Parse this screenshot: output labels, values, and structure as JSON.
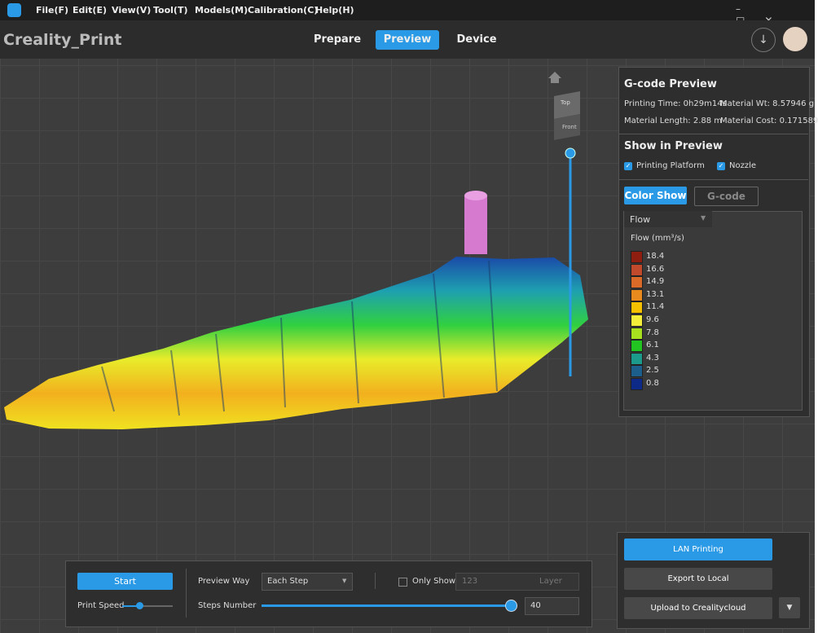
{
  "menu": [
    "File(F)",
    "Edit(E)",
    "View(V)",
    "Tool(T)",
    "Models(M)",
    "Calibration(C)",
    "Help(H)"
  ],
  "app_title": "Creality_Print",
  "tabs": [
    "Prepare",
    "Preview",
    "Device"
  ],
  "view_cube": {
    "top": "Top",
    "front": "Front"
  },
  "gcode_preview": {
    "title": "G-code Preview",
    "stats": [
      "Printing Time: 0h29m14s",
      "Material Wt: 8.57946 g",
      "Material Length: 2.88 m",
      "Material Cost: 0.171589"
    ]
  },
  "show_in_preview": {
    "title": "Show in Preview",
    "options": [
      "Printing Platform",
      "Nozzle"
    ]
  },
  "color_tabs": [
    "Color Show",
    "G-code"
  ],
  "dropdown": "Flow",
  "legend": {
    "title": "Flow (mm³/s)",
    "items": [
      {
        "value": 18.4,
        "color": "#8e1e10"
      },
      {
        "value": 16.6,
        "color": "#c24a2c"
      },
      {
        "value": 14.9,
        "color": "#d96a28"
      },
      {
        "value": 13.1,
        "color": "#e98a1e"
      },
      {
        "value": 11.4,
        "color": "#f4c000"
      },
      {
        "value": 9.6,
        "color": "#f2ee3a"
      },
      {
        "value": 7.8,
        "color": "#a8e020"
      },
      {
        "value": 6.1,
        "color": "#22c422"
      },
      {
        "value": 4.3,
        "color": "#1c9a8c"
      },
      {
        "value": 2.5,
        "color": "#1d5f8c"
      },
      {
        "value": 0.8,
        "color": "#0d2a88"
      }
    ]
  },
  "bottom_panel": {
    "start": "Start",
    "print_speed": "Print Speed",
    "preview_way": "Preview Way",
    "preview_way_value": "Each Step",
    "only_show": "Only Show",
    "layer_input": "123",
    "layer_unit": "Layer",
    "steps_number": "Steps Number",
    "steps_value": 40
  },
  "actions": [
    "LAN Printing",
    "Export to Local",
    "Upload to Crealitycloud"
  ]
}
